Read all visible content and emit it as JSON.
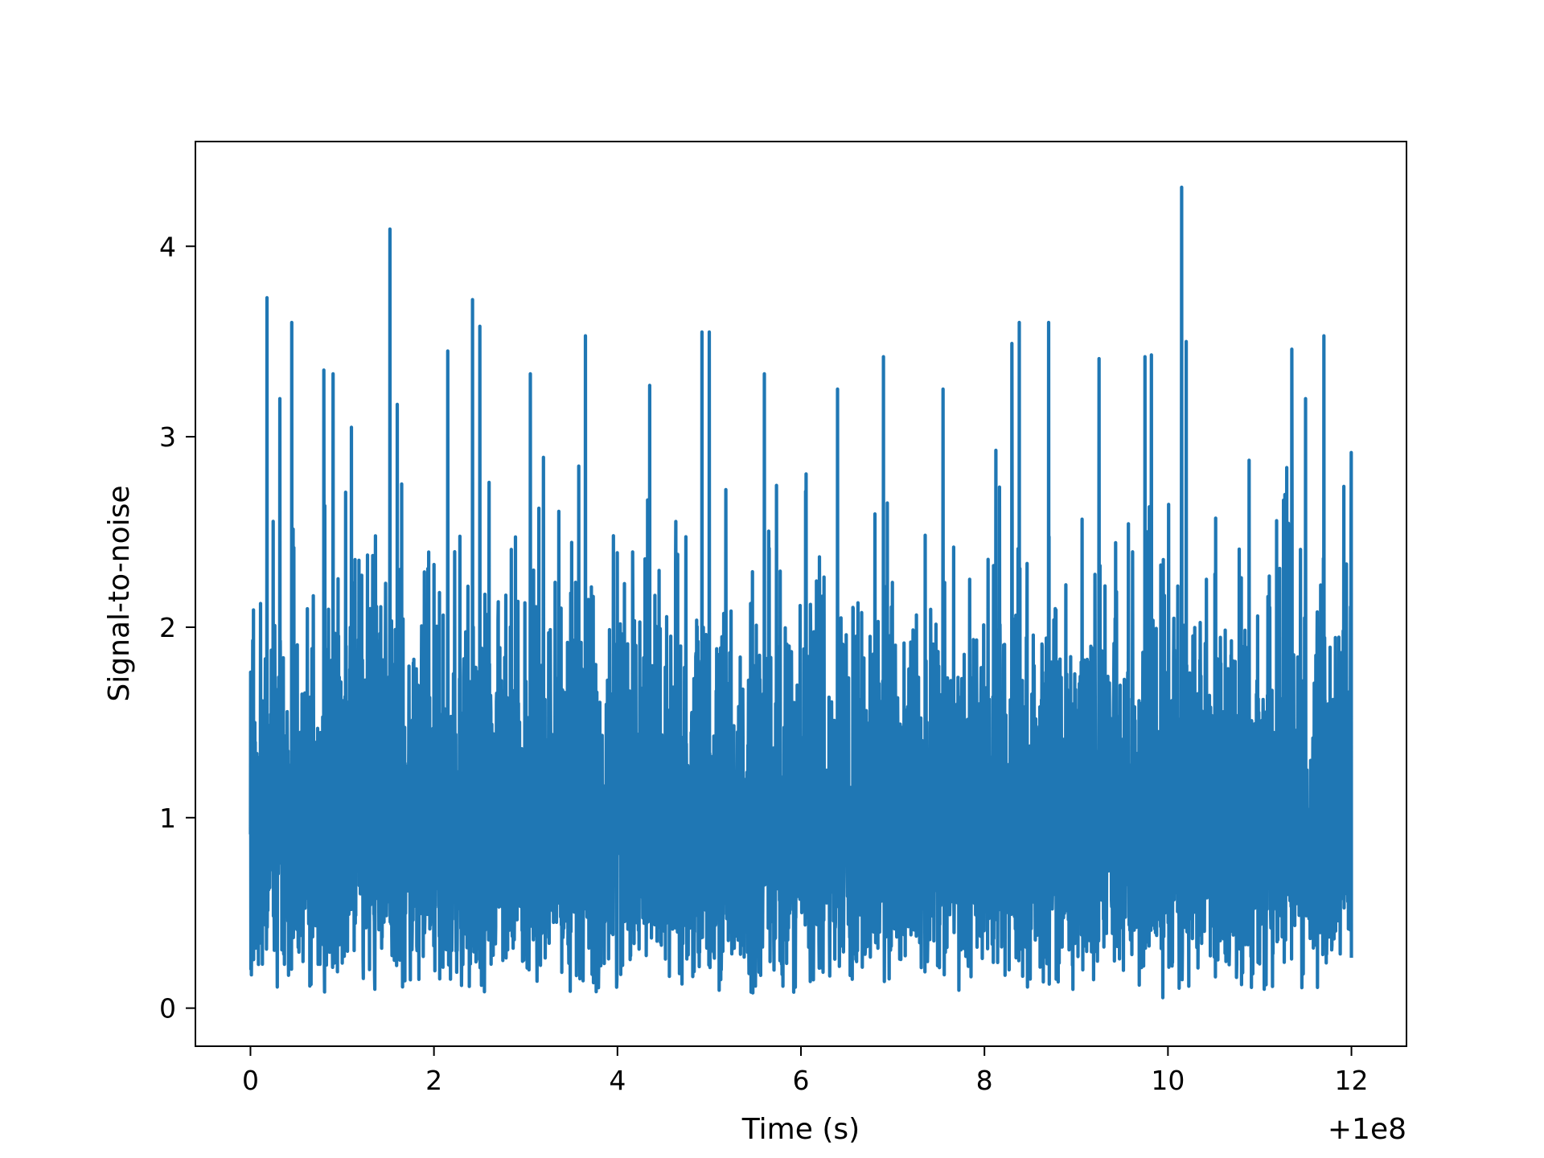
{
  "chart_data": {
    "type": "line",
    "title": "",
    "xlabel": "Time (s)",
    "ylabel": "Signal-to-noise",
    "x_offset_label": "+1e8",
    "x_offset": 100000000,
    "xlim": [
      -0.6,
      12.6
    ],
    "ylim": [
      -0.2,
      4.55
    ],
    "x_ticks": [
      {
        "value": 0,
        "label": "0"
      },
      {
        "value": 2,
        "label": "2"
      },
      {
        "value": 4,
        "label": "4"
      },
      {
        "value": 6,
        "label": "6"
      },
      {
        "value": 8,
        "label": "8"
      },
      {
        "value": 10,
        "label": "10"
      },
      {
        "value": 12,
        "label": "12"
      }
    ],
    "y_ticks": [
      {
        "value": 0,
        "label": "0"
      },
      {
        "value": 1,
        "label": "1"
      },
      {
        "value": 2,
        "label": "2"
      },
      {
        "value": 3,
        "label": "3"
      },
      {
        "value": 4,
        "label": "4"
      }
    ],
    "grid": false,
    "legend": "none",
    "series_color": "#1f77b4",
    "series": [
      {
        "x_range": [
          0,
          12
        ],
        "n_points": 4800,
        "noise": "Rayleigh-like fluctuations, mostly between 0.05 and 2.5",
        "baseline": 1.0,
        "peaks": [
          {
            "x": 0.18,
            "y": 3.73
          },
          {
            "x": 0.45,
            "y": 3.6
          },
          {
            "x": 0.32,
            "y": 3.2
          },
          {
            "x": 0.8,
            "y": 3.35
          },
          {
            "x": 0.9,
            "y": 3.33
          },
          {
            "x": 1.1,
            "y": 3.05
          },
          {
            "x": 1.52,
            "y": 4.09
          },
          {
            "x": 1.6,
            "y": 3.17
          },
          {
            "x": 2.15,
            "y": 3.45
          },
          {
            "x": 2.42,
            "y": 3.72
          },
          {
            "x": 2.5,
            "y": 3.58
          },
          {
            "x": 3.05,
            "y": 3.33
          },
          {
            "x": 3.65,
            "y": 3.53
          },
          {
            "x": 4.35,
            "y": 3.27
          },
          {
            "x": 4.92,
            "y": 3.55
          },
          {
            "x": 5.0,
            "y": 3.55
          },
          {
            "x": 5.6,
            "y": 3.33
          },
          {
            "x": 6.4,
            "y": 3.25
          },
          {
            "x": 6.9,
            "y": 3.42
          },
          {
            "x": 7.55,
            "y": 3.25
          },
          {
            "x": 8.3,
            "y": 3.49
          },
          {
            "x": 8.38,
            "y": 3.6
          },
          {
            "x": 8.7,
            "y": 3.6
          },
          {
            "x": 9.25,
            "y": 3.41
          },
          {
            "x": 9.75,
            "y": 3.42
          },
          {
            "x": 9.82,
            "y": 3.43
          },
          {
            "x": 10.15,
            "y": 4.31
          },
          {
            "x": 10.2,
            "y": 3.5
          },
          {
            "x": 11.35,
            "y": 3.46
          },
          {
            "x": 11.7,
            "y": 3.53
          },
          {
            "x": 11.5,
            "y": 3.2
          }
        ]
      }
    ]
  }
}
